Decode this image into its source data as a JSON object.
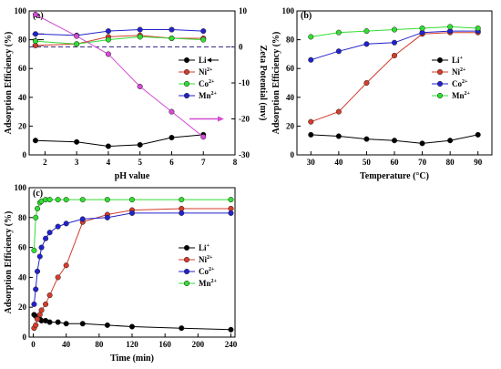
{
  "chart_data": [
    {
      "panel": "(a)",
      "type": "line",
      "xlabel": "pH value",
      "ylabel": "Adsorption Efficiency (%)",
      "y2label": "Zeta Potential (mv)",
      "xlim": [
        1.5,
        8
      ],
      "ylim": [
        0,
        100
      ],
      "y2lim": [
        -30,
        10
      ],
      "xticks": [
        2,
        3,
        4,
        5,
        6,
        7,
        8
      ],
      "yticks": [
        0,
        20,
        40,
        60,
        80,
        100
      ],
      "y2ticks": [
        -30,
        -20,
        -10,
        0,
        10
      ],
      "x": [
        1.7,
        3,
        4,
        5,
        6,
        7
      ],
      "series": [
        {
          "name": "Li",
          "color": "#000000",
          "axis": "left",
          "values": [
            10,
            9,
            6,
            7,
            12,
            14
          ]
        },
        {
          "name": "Ni2+",
          "color": "#d43c2c",
          "axis": "left",
          "values": [
            76,
            77,
            82,
            83,
            81,
            81
          ]
        },
        {
          "name": "Co2+",
          "color": "#33dd33",
          "axis": "left",
          "values": [
            79,
            77,
            80,
            82,
            81,
            80
          ]
        },
        {
          "name": "Mn2+",
          "color": "#2222cc",
          "axis": "left",
          "values": [
            84,
            83,
            86,
            87,
            87,
            86
          ]
        },
        {
          "name": "",
          "color": "#d24cd2",
          "axis": "right",
          "values": [
            9,
            3,
            -2,
            -11,
            -18,
            -25
          ]
        }
      ],
      "refline_y2": 0,
      "legend_position": "right-middle",
      "legend": [
        {
          "base": "Li",
          "sup": ""
        },
        {
          "base": "Ni",
          "sup": "2+"
        },
        {
          "base": "Co",
          "sup": "2+"
        },
        {
          "base": "Mn",
          "sup": "2+"
        }
      ]
    },
    {
      "panel": "(b)",
      "type": "line",
      "xlabel": "Temperature (°C)",
      "ylabel": "Adsorption Efficiency (%)",
      "xlim": [
        25,
        95
      ],
      "ylim": [
        0,
        100
      ],
      "xticks": [
        30,
        40,
        50,
        60,
        70,
        80,
        90
      ],
      "yticks": [
        0,
        20,
        40,
        60,
        80,
        100
      ],
      "x": [
        30,
        40,
        50,
        60,
        70,
        80,
        90
      ],
      "series": [
        {
          "name": "Li+",
          "color": "#000000",
          "values": [
            14,
            13,
            11,
            10,
            8,
            10,
            14
          ]
        },
        {
          "name": "Ni2+",
          "color": "#d43c2c",
          "values": [
            23,
            30,
            50,
            69,
            84,
            85,
            85
          ]
        },
        {
          "name": "Co2+",
          "color": "#2222cc",
          "values": [
            66,
            72,
            77,
            78,
            85,
            86,
            86
          ]
        },
        {
          "name": "Mn2+",
          "color": "#33dd33",
          "values": [
            82,
            85,
            86,
            87,
            88,
            89,
            88
          ]
        }
      ],
      "legend_position": "right-middle",
      "legend": [
        {
          "base": "Li",
          "sup": "+"
        },
        {
          "base": "Ni",
          "sup": "2+"
        },
        {
          "base": "Co",
          "sup": "2+"
        },
        {
          "base": "Mn",
          "sup": "2+"
        }
      ]
    },
    {
      "panel": "(c)",
      "type": "line",
      "xlabel": "Time (min)",
      "ylabel": "Adsorption Efficiency (%)",
      "xlim": [
        -5,
        245
      ],
      "ylim": [
        0,
        100
      ],
      "xticks": [
        0,
        40,
        80,
        120,
        160,
        200,
        240
      ],
      "yticks": [
        0,
        20,
        40,
        60,
        80,
        100
      ],
      "x": [
        1,
        3,
        5,
        8,
        10,
        15,
        20,
        30,
        40,
        60,
        90,
        120,
        180,
        240
      ],
      "series": [
        {
          "name": "Li+",
          "color": "#000000",
          "values": [
            15,
            14,
            13,
            12,
            11,
            11,
            10,
            10,
            9,
            9,
            8,
            7,
            6,
            5
          ]
        },
        {
          "name": "Ni2+",
          "color": "#d43c2c",
          "values": [
            6,
            8,
            12,
            15,
            18,
            22,
            28,
            40,
            48,
            77,
            82,
            85,
            86,
            86
          ]
        },
        {
          "name": "Co2+",
          "color": "#2222cc",
          "values": [
            22,
            32,
            44,
            54,
            60,
            66,
            70,
            74,
            76,
            79,
            80,
            83,
            83,
            83
          ]
        },
        {
          "name": "Mn2+",
          "color": "#33dd33",
          "values": [
            58,
            80,
            86,
            90,
            91,
            92,
            92,
            92,
            92,
            92,
            92,
            92,
            92,
            92
          ]
        }
      ],
      "legend_position": "right-middle",
      "legend": [
        {
          "base": "Li",
          "sup": "+"
        },
        {
          "base": "Ni",
          "sup": "2+"
        },
        {
          "base": "Co",
          "sup": "2+"
        },
        {
          "base": "Mn",
          "sup": "2+"
        }
      ]
    }
  ]
}
